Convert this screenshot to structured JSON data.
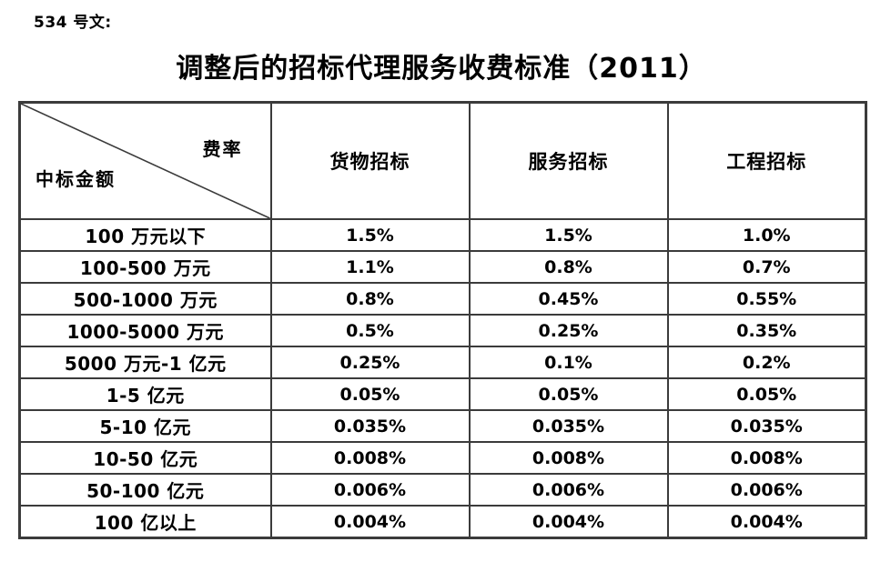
{
  "page": {
    "doc_number": "534 号文:",
    "title": "调整后的招标代理服务收费标准（2011）"
  },
  "table": {
    "corner": {
      "fee_rate_label": "费率",
      "bid_amount_label": "中标金额"
    },
    "columns": [
      "货物招标",
      "服务招标",
      "工程招标"
    ],
    "rows": [
      {
        "label": "100 万元以下",
        "values": [
          "1.5%",
          "1.5%",
          "1.0%"
        ]
      },
      {
        "label": "100-500 万元",
        "values": [
          "1.1%",
          "0.8%",
          "0.7%"
        ]
      },
      {
        "label": "500-1000 万元",
        "values": [
          "0.8%",
          "0.45%",
          "0.55%"
        ]
      },
      {
        "label": "1000-5000 万元",
        "values": [
          "0.5%",
          "0.25%",
          "0.35%"
        ]
      },
      {
        "label": "5000 万元-1 亿元",
        "values": [
          "0.25%",
          "0.1%",
          "0.2%"
        ]
      },
      {
        "label": "1-5 亿元",
        "values": [
          "0.05%",
          "0.05%",
          "0.05%"
        ]
      },
      {
        "label": "5-10 亿元",
        "values": [
          "0.035%",
          "0.035%",
          "0.035%"
        ]
      },
      {
        "label": "10-50 亿元",
        "values": [
          "0.008%",
          "0.008%",
          "0.008%"
        ]
      },
      {
        "label": "50-100 亿元",
        "values": [
          "0.006%",
          "0.006%",
          "0.006%"
        ]
      },
      {
        "label": "100 亿以上",
        "values": [
          "0.004%",
          "0.004%",
          "0.004%"
        ]
      }
    ]
  },
  "colors": {
    "background": "#ffffff",
    "text": "#000000",
    "border": "#3b3b3b"
  }
}
